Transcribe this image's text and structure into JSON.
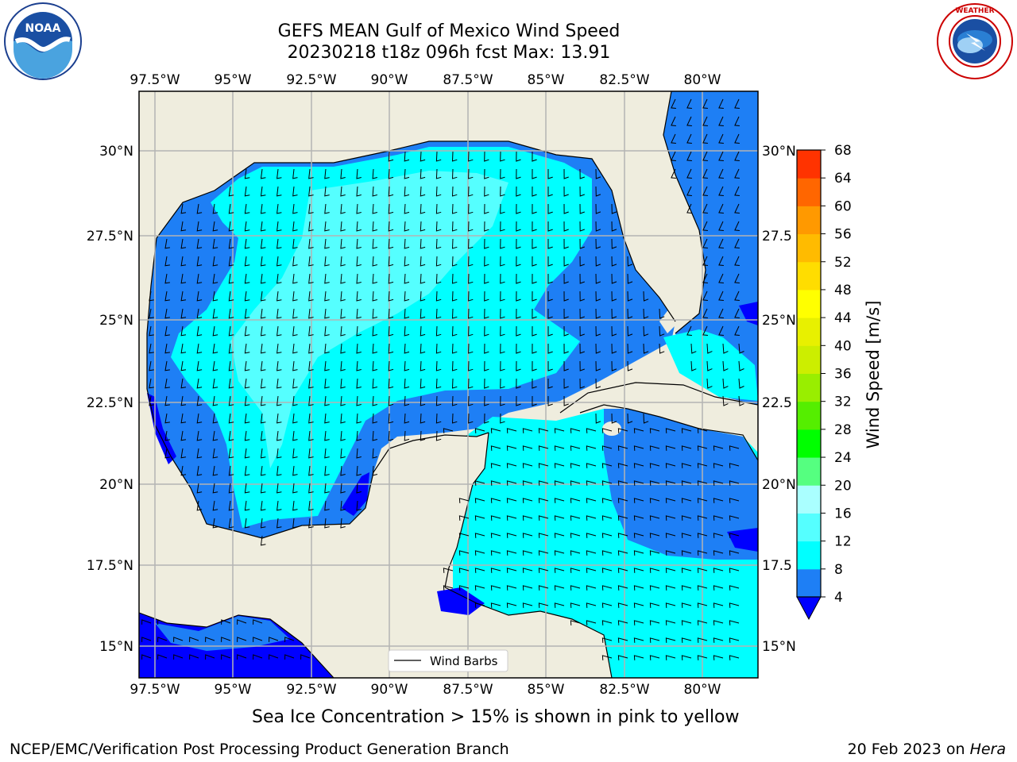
{
  "title": {
    "line1": "GEFS MEAN Gulf of Mexico Wind Speed",
    "line2": "20230218 t18z 096h fcst   Max: 13.91"
  },
  "map": {
    "lon_labels": [
      "97.5°W",
      "95°W",
      "92.5°W",
      "90°W",
      "87.5°W",
      "85°W",
      "82.5°W",
      "80°W"
    ],
    "lat_labels_left": [
      "30°N",
      "27.5°N",
      "25°N",
      "22.5°N",
      "20°N",
      "17.5°N",
      "15°N"
    ],
    "lat_labels_right": [
      "30°N",
      "27.5",
      "25°N",
      "22.5",
      "20°N",
      "17.5",
      "15°N"
    ],
    "legend_label": "Wind Barbs",
    "colors": {
      "land": "#efedde",
      "ws_4_8": "#1e7ff5",
      "ws_8_12": "#00ffff",
      "ws_12_16": "#55ffff",
      "ws_lt_4": "#0000ff",
      "grid": "#b4b4b4"
    }
  },
  "colorbar": {
    "label": "Wind Speed [m/s]",
    "ticks": [
      "4",
      "8",
      "12",
      "16",
      "20",
      "24",
      "28",
      "32",
      "36",
      "40",
      "44",
      "48",
      "52",
      "56",
      "60",
      "64",
      "68"
    ],
    "colors": [
      "#1e7ff5",
      "#00ffff",
      "#55ffff",
      "#aaffff",
      "#55ff80",
      "#00ff00",
      "#55ee00",
      "#99ee00",
      "#ccee00",
      "#e8f000",
      "#ffff00",
      "#ffdd00",
      "#ffbb00",
      "#ff9900",
      "#ff6600",
      "#ff3300",
      "#ff0000"
    ],
    "under_color": "#0000ff"
  },
  "footer": {
    "sea_ice_note": "Sea Ice Concentration > 15% is shown in pink to yellow",
    "branch": "NCEP/EMC/Verification Post Processing Product Generation Branch",
    "date": "20 Feb 2023 on ",
    "machine": "Hera"
  },
  "logos": {
    "left": "noaa-logo",
    "right": "nws-logo"
  }
}
